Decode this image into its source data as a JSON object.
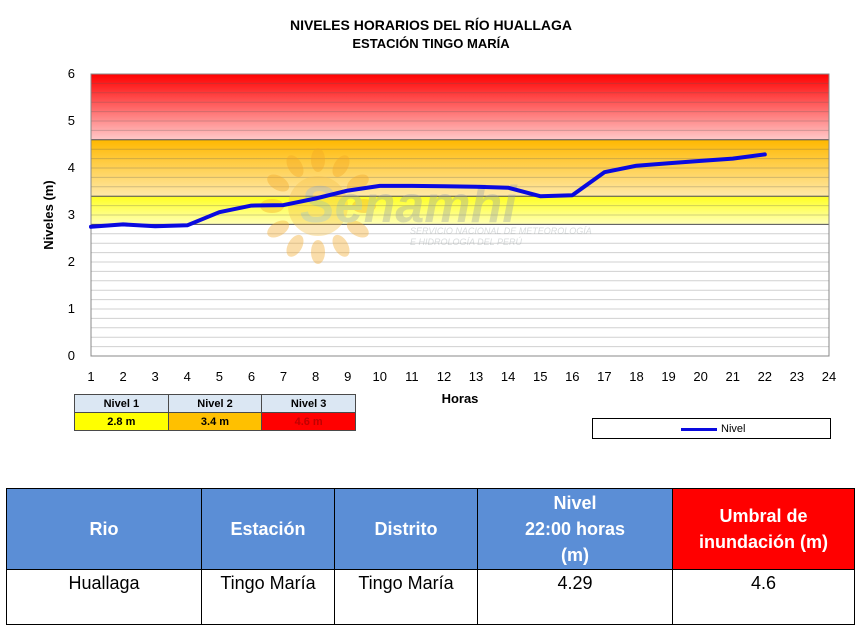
{
  "chart_data": {
    "type": "line",
    "title": "NIVELES HORARIOS DEL RÍO HUALLAGA",
    "subtitle": "ESTACIÓN TINGO MARÍA",
    "xlabel": "Horas",
    "ylabel": "Niveles (m)",
    "xlim": [
      1,
      24
    ],
    "ylim": [
      0,
      6
    ],
    "x_ticks": [
      "1",
      "2",
      "3",
      "4",
      "5",
      "6",
      "7",
      "8",
      "9",
      "10",
      "11",
      "12",
      "13",
      "14",
      "15",
      "16",
      "17",
      "18",
      "19",
      "20",
      "21",
      "22",
      "23",
      "24"
    ],
    "y_ticks": [
      "0",
      "1",
      "2",
      "3",
      "4",
      "5",
      "6"
    ],
    "legend_position": "bottom-right",
    "series": [
      {
        "name": "Nivel",
        "color": "#0a0adf",
        "x": [
          1,
          2,
          3,
          4,
          5,
          6,
          7,
          8,
          9,
          10,
          11,
          12,
          13,
          14,
          15,
          16,
          17,
          18,
          19,
          20,
          21,
          22
        ],
        "values": [
          2.75,
          2.8,
          2.76,
          2.78,
          3.06,
          3.2,
          3.21,
          3.35,
          3.52,
          3.62,
          3.62,
          3.61,
          3.6,
          3.58,
          3.4,
          3.42,
          3.91,
          4.05,
          4.1,
          4.15,
          4.2,
          4.29
        ]
      }
    ],
    "threshold_bands": [
      {
        "from": 2.8,
        "to": 3.4,
        "color": "#ffff33"
      },
      {
        "from": 3.4,
        "to": 4.6,
        "color": "#ffbf00"
      },
      {
        "from": 4.6,
        "to": 6,
        "color": "#ff0000"
      }
    ]
  },
  "watermark": {
    "brand": "Senamhi",
    "tagline_1": "SERVICIO NACIONAL DE METEOROLOGÍA",
    "tagline_2": "E HIDROLOGÍA DEL PERÚ"
  },
  "levels": [
    {
      "label": "Nivel 1",
      "value": "2.8 m",
      "color": "#ffff00",
      "text_color": "#000000"
    },
    {
      "label": "Nivel 2",
      "value": "3.4 m",
      "color": "#ffc000",
      "text_color": "#000000"
    },
    {
      "label": "Nivel 3",
      "value": "4.6 m",
      "color": "#ff0000",
      "text_color": "#c00000"
    }
  ],
  "legend": {
    "label": "Nivel"
  },
  "info_table": {
    "headers": {
      "rio": "Rio",
      "estacion": "Estación",
      "distrito": "Distrito",
      "nivel_line1": "Nivel",
      "nivel_line2": "22:00 horas",
      "nivel_line3": "(m)",
      "umbral_line1": "Umbral de",
      "umbral_line2": "inundación (m)"
    },
    "row": {
      "rio": "Huallaga",
      "estacion": "Tingo María",
      "distrito": "Tingo María",
      "nivel": "4.29",
      "umbral": "4.6"
    }
  }
}
